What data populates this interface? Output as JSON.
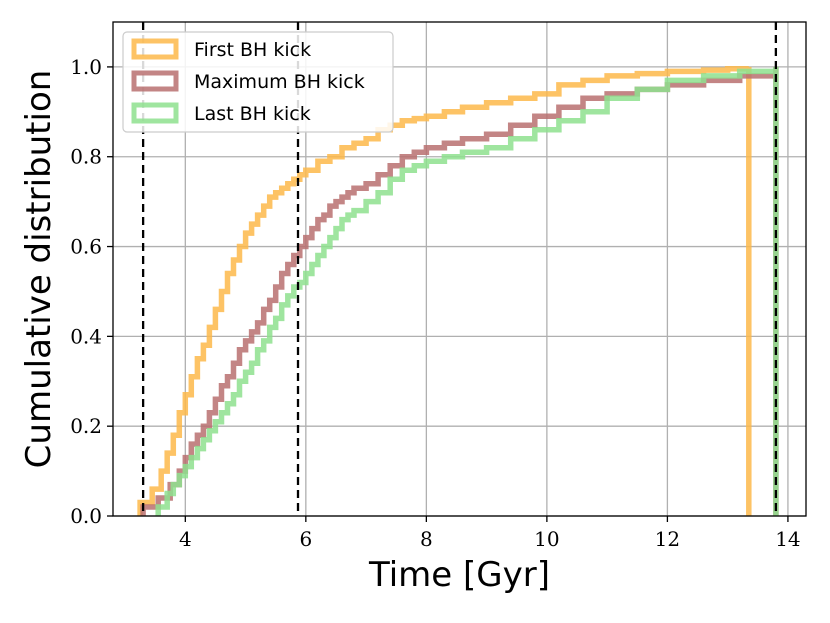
{
  "chart_data": {
    "type": "line",
    "step": true,
    "xlabel": "Time [Gyr]",
    "ylabel": "Cumulative distribution",
    "xlim": [
      2.8,
      14.3
    ],
    "ylim": [
      0.0,
      1.1
    ],
    "x_ticks": [
      4,
      6,
      8,
      10,
      12,
      14
    ],
    "y_ticks": [
      0.0,
      0.2,
      0.4,
      0.6,
      0.8,
      1.0
    ],
    "x_tick_labels": [
      "4",
      "6",
      "8",
      "10",
      "12",
      "14"
    ],
    "y_tick_labels": [
      "0.0",
      "0.2",
      "0.4",
      "0.6",
      "0.8",
      "1.0"
    ],
    "grid": true,
    "legend_position": "top-left",
    "vertical_lines": [
      3.3,
      5.87,
      13.8
    ],
    "series": [
      {
        "name": "First BH kick",
        "color": "#fdb84a",
        "x": [
          3.25,
          3.45,
          3.6,
          3.7,
          3.8,
          3.9,
          4.0,
          4.1,
          4.2,
          4.3,
          4.4,
          4.5,
          4.6,
          4.7,
          4.8,
          4.9,
          5.0,
          5.1,
          5.2,
          5.3,
          5.4,
          5.5,
          5.6,
          5.7,
          5.8,
          5.9,
          6.0,
          6.2,
          6.4,
          6.6,
          6.8,
          7.0,
          7.2,
          7.4,
          7.6,
          7.8,
          8.0,
          8.3,
          8.6,
          9.0,
          9.4,
          9.8,
          10.2,
          10.6,
          11.0,
          11.5,
          12.0,
          12.6,
          13.0,
          13.35
        ],
        "y": [
          0.03,
          0.06,
          0.1,
          0.14,
          0.18,
          0.23,
          0.27,
          0.31,
          0.35,
          0.38,
          0.42,
          0.46,
          0.5,
          0.54,
          0.57,
          0.6,
          0.63,
          0.65,
          0.67,
          0.69,
          0.71,
          0.72,
          0.73,
          0.74,
          0.75,
          0.76,
          0.77,
          0.79,
          0.8,
          0.82,
          0.83,
          0.84,
          0.86,
          0.87,
          0.88,
          0.885,
          0.89,
          0.9,
          0.91,
          0.92,
          0.93,
          0.94,
          0.96,
          0.97,
          0.98,
          0.985,
          0.99,
          0.993,
          0.996,
          1.0
        ]
      },
      {
        "name": "Maximum BH kick",
        "color": "#b87070",
        "x": [
          3.3,
          3.55,
          3.75,
          3.9,
          4.0,
          4.1,
          4.2,
          4.3,
          4.4,
          4.5,
          4.6,
          4.7,
          4.8,
          4.9,
          5.0,
          5.1,
          5.2,
          5.3,
          5.4,
          5.5,
          5.6,
          5.7,
          5.8,
          5.9,
          6.0,
          6.1,
          6.2,
          6.3,
          6.4,
          6.5,
          6.6,
          6.7,
          6.8,
          7.0,
          7.2,
          7.4,
          7.6,
          7.8,
          8.0,
          8.3,
          8.6,
          9.0,
          9.4,
          9.8,
          10.2,
          10.6,
          11.0,
          11.5,
          12.0,
          12.6,
          13.2,
          13.8
        ],
        "y": [
          0.02,
          0.04,
          0.07,
          0.1,
          0.13,
          0.16,
          0.18,
          0.2,
          0.23,
          0.26,
          0.29,
          0.31,
          0.34,
          0.37,
          0.39,
          0.41,
          0.43,
          0.46,
          0.48,
          0.51,
          0.54,
          0.56,
          0.58,
          0.6,
          0.62,
          0.64,
          0.66,
          0.67,
          0.69,
          0.7,
          0.71,
          0.72,
          0.73,
          0.74,
          0.76,
          0.78,
          0.8,
          0.81,
          0.82,
          0.83,
          0.84,
          0.85,
          0.87,
          0.89,
          0.91,
          0.93,
          0.94,
          0.95,
          0.96,
          0.97,
          0.98,
          1.0
        ]
      },
      {
        "name": "Last BH kick",
        "color": "#8ee08e",
        "x": [
          3.55,
          3.7,
          3.8,
          3.9,
          4.0,
          4.1,
          4.2,
          4.3,
          4.4,
          4.5,
          4.6,
          4.7,
          4.8,
          4.9,
          5.0,
          5.1,
          5.2,
          5.3,
          5.4,
          5.5,
          5.6,
          5.7,
          5.8,
          5.9,
          6.0,
          6.1,
          6.2,
          6.3,
          6.4,
          6.5,
          6.6,
          6.7,
          6.8,
          7.0,
          7.2,
          7.4,
          7.6,
          7.8,
          8.0,
          8.3,
          8.6,
          9.0,
          9.4,
          9.8,
          10.2,
          10.6,
          11.0,
          11.5,
          12.0,
          12.6,
          13.2,
          13.8
        ],
        "y": [
          0.02,
          0.05,
          0.07,
          0.09,
          0.11,
          0.13,
          0.15,
          0.17,
          0.19,
          0.21,
          0.23,
          0.25,
          0.27,
          0.3,
          0.32,
          0.34,
          0.37,
          0.39,
          0.42,
          0.44,
          0.47,
          0.49,
          0.51,
          0.52,
          0.54,
          0.56,
          0.58,
          0.6,
          0.62,
          0.64,
          0.66,
          0.67,
          0.68,
          0.7,
          0.72,
          0.75,
          0.77,
          0.78,
          0.79,
          0.8,
          0.81,
          0.82,
          0.84,
          0.86,
          0.88,
          0.9,
          0.93,
          0.95,
          0.97,
          0.98,
          0.99,
          1.0
        ]
      }
    ]
  }
}
